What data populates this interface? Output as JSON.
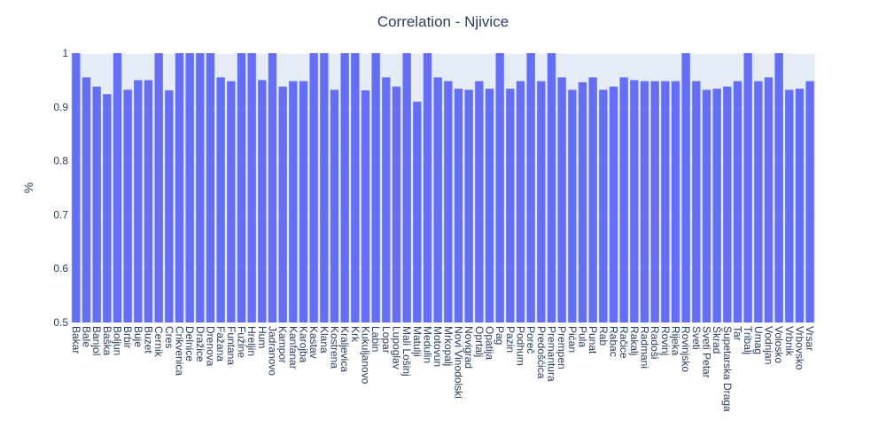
{
  "chart_data": {
    "type": "bar",
    "title": "Correlation - Njivice",
    "xlabel": "",
    "ylabel": "%",
    "ylim": [
      0.5,
      1.0
    ],
    "yticks": [
      0.5,
      0.6,
      0.7,
      0.8,
      0.9,
      1
    ],
    "ytick_labels": [
      "0.5",
      "0.6",
      "0.7",
      "0.8",
      "0.9",
      "1"
    ],
    "grid": true,
    "colors": {
      "bar": "#636efa",
      "plot_bg": "#e5ecf6",
      "grid": "#ffffff",
      "text": "#2a3f5f"
    },
    "categories": [
      "Bakar",
      "Bale",
      "Banjol",
      "Baška",
      "Boljun",
      "Brbir",
      "Buje",
      "Buzet",
      "Cernik",
      "Cres",
      "Crikvenica",
      "Delnice",
      "Dražice",
      "Drenova",
      "Fažana",
      "Funtana",
      "Fužine",
      "Hreljin",
      "Hum",
      "Jadranovo",
      "Kampor",
      "Kanfanar",
      "Karojba",
      "Kastav",
      "Klana",
      "Kostrena",
      "Kraljevica",
      "Krk",
      "Kukuljanovo",
      "Labin",
      "Lopar",
      "Lupoglav",
      "Mali Lošinj",
      "Matulji",
      "Medulin",
      "Motovun",
      "Mrkopalj",
      "Novi Vinodolski",
      "Novigrad",
      "Oprtalj",
      "Opatija",
      "Pag",
      "Pazin",
      "Podhum",
      "Poreč",
      "Predošćica",
      "Premantura",
      "Prempen",
      "Pićan",
      "Pula",
      "Punat",
      "Rab",
      "Rabac",
      "Račice",
      "Rakalj",
      "Radmani",
      "Radoši",
      "Rovinj",
      "Rijeka",
      "Rovinjsko",
      "Sveti",
      "Sveti Petar",
      "Škrad",
      "Supetarska Draga",
      "Tar",
      "Tribalj",
      "Umag",
      "Vodnjan",
      "Volosko",
      "Vrbnik",
      "Vrbovsko",
      "Vrsar"
    ],
    "values": [
      1,
      0.955,
      0.938,
      0.924,
      1,
      0.932,
      0.95,
      0.95,
      1,
      0.931,
      1,
      1,
      1,
      1,
      0.955,
      0.948,
      1,
      1,
      0.95,
      1,
      0.938,
      0.948,
      0.948,
      1,
      1,
      0.932,
      1,
      1,
      0.931,
      1,
      0.955,
      0.938,
      1,
      0.91,
      1,
      0.955,
      0.948,
      0.934,
      0.932,
      0.948,
      0.934,
      1,
      0.934,
      0.948,
      1,
      0.948,
      1,
      0.955,
      0.932,
      0.946,
      0.955,
      0.932,
      0.938,
      0.955,
      0.95,
      0.948,
      0.948,
      0.948,
      0.948,
      1,
      0.948,
      0.932,
      0.934,
      0.938,
      0.948,
      1,
      0.948,
      0.955,
      1,
      0.932,
      0.934,
      0.948
    ]
  }
}
